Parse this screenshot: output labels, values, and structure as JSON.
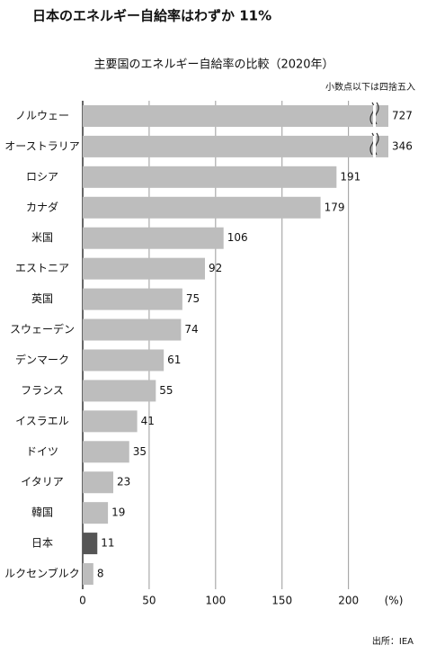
{
  "chart_data": {
    "type": "bar",
    "orientation": "horizontal",
    "title": "日本のエネルギー自給率はわずか 11%",
    "subtitle": "主要国のエネルギー自給率の比較（2020年）",
    "note": "小数点以下は四捨五入",
    "source": "出所：IEA",
    "xlabel": "(%)",
    "categories": [
      "ノルウェー",
      "オーストラリア",
      "ロシア",
      "カナダ",
      "米国",
      "エストニア",
      "英国",
      "スウェーデン",
      "デンマーク",
      "フランス",
      "イスラエル",
      "ドイツ",
      "イタリア",
      "韓国",
      "日本",
      "ルクセンブルク"
    ],
    "values": [
      727,
      346,
      191,
      179,
      106,
      92,
      75,
      74,
      61,
      55,
      41,
      35,
      23,
      19,
      11,
      8
    ],
    "colors": [
      "#bdbdbd",
      "#bdbdbd",
      "#bdbdbd",
      "#bdbdbd",
      "#bdbdbd",
      "#bdbdbd",
      "#bdbdbd",
      "#bdbdbd",
      "#bdbdbd",
      "#bdbdbd",
      "#bdbdbd",
      "#bdbdbd",
      "#bdbdbd",
      "#bdbdbd",
      "#555555",
      "#bdbdbd"
    ],
    "xlim": [
      0,
      230
    ],
    "xticks": [
      0,
      50,
      100,
      150,
      200
    ],
    "grid": true,
    "axis_break": true
  }
}
